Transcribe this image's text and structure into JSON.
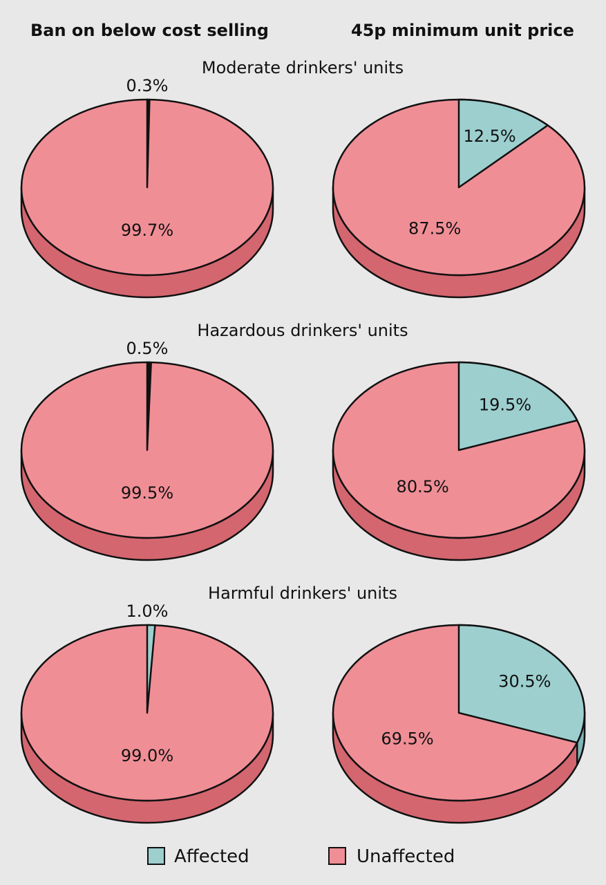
{
  "column_titles": [
    "Ban on below cost selling",
    "45p minimum unit price"
  ],
  "legend": {
    "items": [
      {
        "label": "Affected",
        "color": "#9dcfcf"
      },
      {
        "label": "Unaffected",
        "color": "#f08e96"
      }
    ]
  },
  "colors": {
    "affected_top": "#9dcfcf",
    "affected_side": "#7fb6b6",
    "unaffected_top": "#f08e96",
    "unaffected_side": "#d4666f",
    "outline": "#111111",
    "background": "#e8e8e8"
  },
  "chart_data": [
    {
      "type": "pie",
      "group": "Moderate drinkers' units",
      "column": "Ban on below cost selling",
      "categories": [
        "Affected",
        "Unaffected"
      ],
      "values": [
        0.3,
        99.7
      ],
      "labels": [
        "0.3%",
        "99.7%"
      ]
    },
    {
      "type": "pie",
      "group": "Moderate drinkers' units",
      "column": "45p minimum unit price",
      "categories": [
        "Affected",
        "Unaffected"
      ],
      "values": [
        12.5,
        87.5
      ],
      "labels": [
        "12.5%",
        "87.5%"
      ]
    },
    {
      "type": "pie",
      "group": "Hazardous drinkers' units",
      "column": "Ban on below cost selling",
      "categories": [
        "Affected",
        "Unaffected"
      ],
      "values": [
        0.5,
        99.5
      ],
      "labels": [
        "0.5%",
        "99.5%"
      ]
    },
    {
      "type": "pie",
      "group": "Hazardous drinkers' units",
      "column": "45p minimum unit price",
      "categories": [
        "Affected",
        "Unaffected"
      ],
      "values": [
        19.5,
        80.5
      ],
      "labels": [
        "19.5%",
        "80.5%"
      ]
    },
    {
      "type": "pie",
      "group": "Harmful drinkers' units",
      "column": "Ban on below cost selling",
      "categories": [
        "Affected",
        "Unaffected"
      ],
      "values": [
        1.0,
        99.0
      ],
      "labels": [
        "1.0%",
        "99.0%"
      ]
    },
    {
      "type": "pie",
      "group": "Harmful drinkers' units",
      "column": "45p minimum unit price",
      "categories": [
        "Affected",
        "Unaffected"
      ],
      "values": [
        30.5,
        69.5
      ],
      "labels": [
        "30.5%",
        "69.5%"
      ]
    }
  ]
}
